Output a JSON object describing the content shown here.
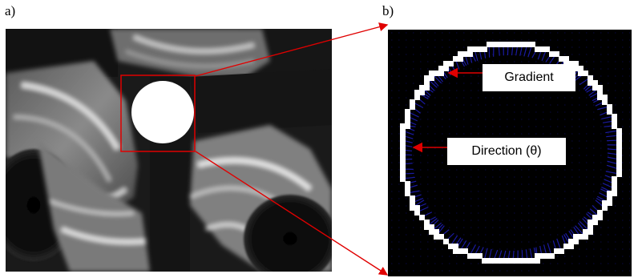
{
  "figure": {
    "panel_a_label": "a)",
    "panel_b_label": "b)"
  },
  "annotations": {
    "gradient": "Gradient",
    "direction": "Direction (θ)"
  },
  "colors": {
    "callout_line": "#e00000",
    "zoom_box": "#e00000",
    "gradient_vectors": "#1a1aa0",
    "edge_ring": "#ffffff",
    "background": "#000000"
  }
}
